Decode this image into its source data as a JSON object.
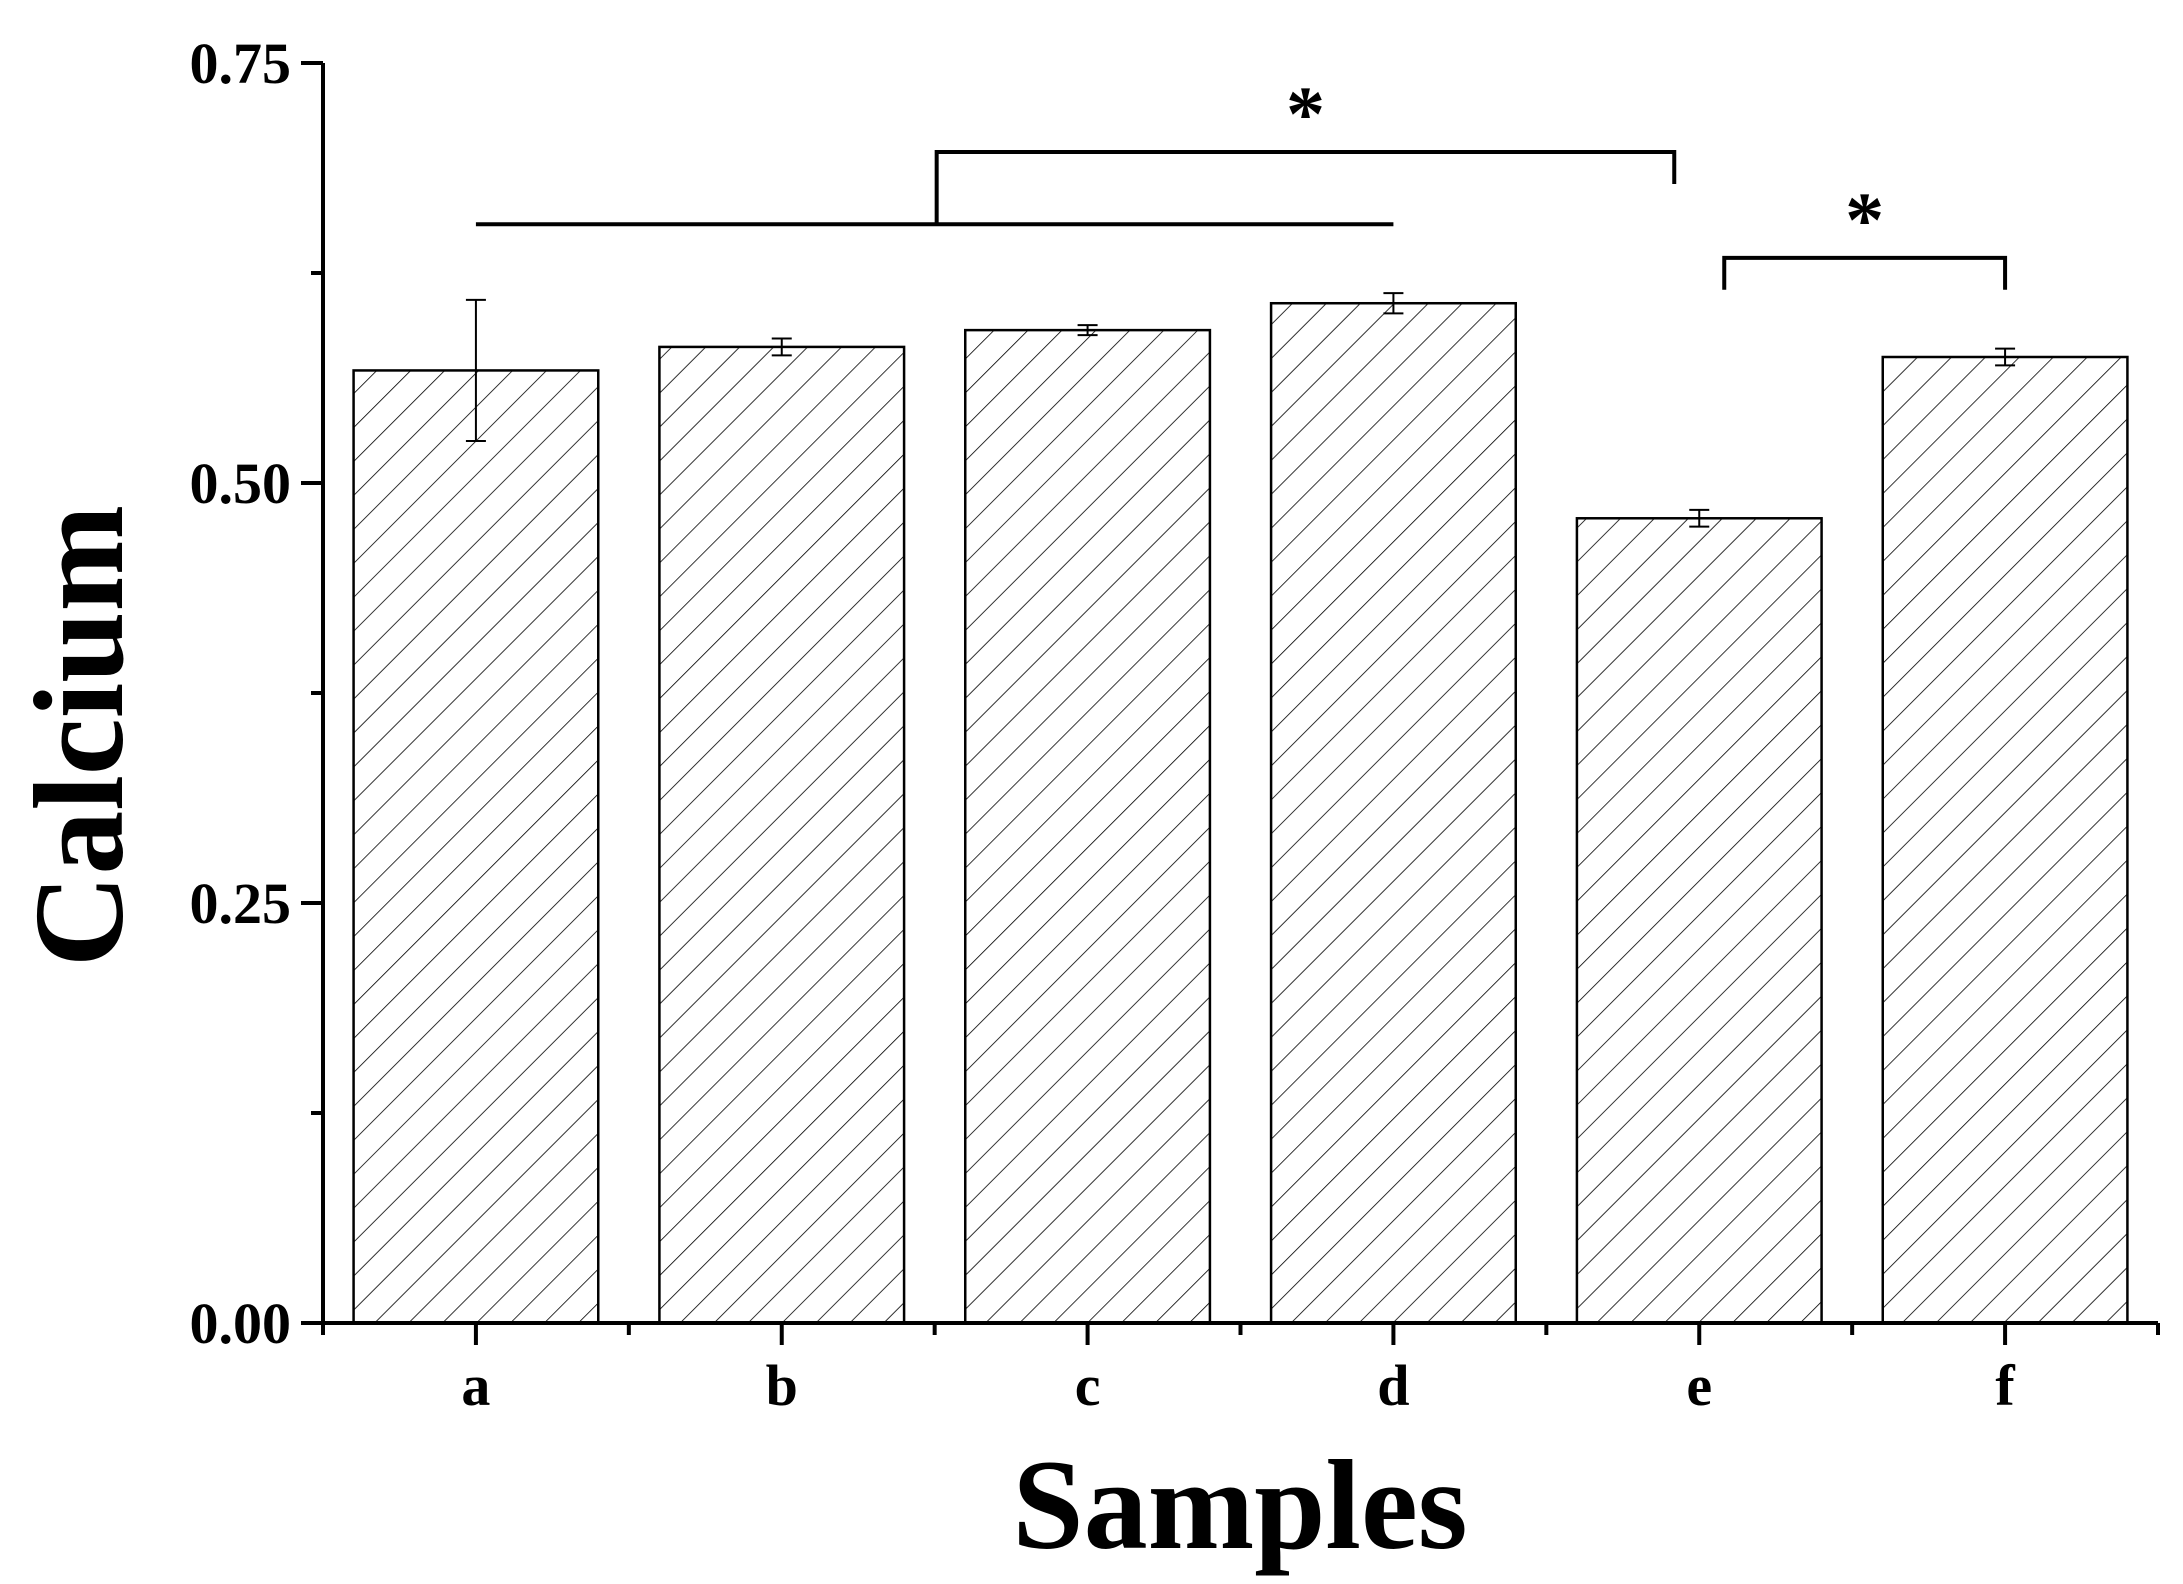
{
  "chart_data": {
    "type": "bar",
    "categories": [
      "a",
      "b",
      "c",
      "d",
      "e",
      "f"
    ],
    "values": [
      0.567,
      0.581,
      0.591,
      0.607,
      0.479,
      0.575
    ],
    "errors": [
      0.042,
      0.005,
      0.003,
      0.006,
      0.005,
      0.005
    ],
    "xlabel": "Samples",
    "ylabel": "Calcium",
    "ylim": [
      0,
      0.75
    ],
    "yticks": [
      "0.00",
      "0.25",
      "0.50",
      "0.75"
    ],
    "ytick_values": [
      0,
      0.25,
      0.5,
      0.75
    ],
    "minor_ytick_values": [
      0.125,
      0.375,
      0.625
    ],
    "bar_fill": "hatched diagonal",
    "grid": false,
    "significance": [
      {
        "label": "*",
        "group": [
          "a",
          "b",
          "c",
          "d"
        ],
        "compared_to": "e"
      },
      {
        "label": "*",
        "group": [
          "e"
        ],
        "compared_to": "f"
      }
    ]
  }
}
